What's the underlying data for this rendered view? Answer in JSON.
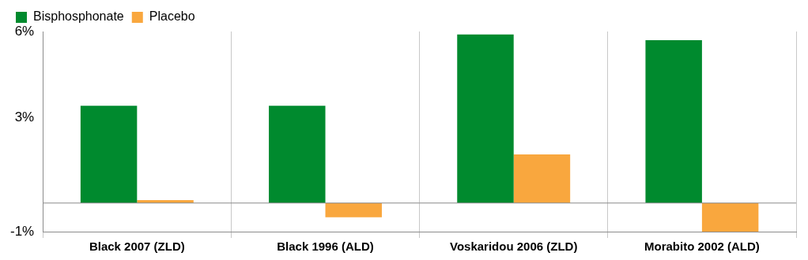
{
  "chart_data": {
    "type": "bar",
    "categories": [
      "Black 2007 (ZLD)",
      "Black 1996 (ALD)",
      "Voskaridou 2006 (ZLD)",
      "Morabito 2002 (ALD)"
    ],
    "series": [
      {
        "name": "Bisphosphonate",
        "color": "#008a2e",
        "values": [
          3.4,
          3.4,
          5.9,
          5.7
        ]
      },
      {
        "name": "Placebo",
        "color": "#f9a73e",
        "values": [
          0.1,
          -0.5,
          1.7,
          -1.0
        ]
      }
    ],
    "ylim": [
      -1,
      6
    ],
    "yticks": [
      {
        "value": -1,
        "label": "-1%"
      },
      {
        "value": 3,
        "label": "3%"
      },
      {
        "value": 6,
        "label": "6%"
      }
    ],
    "grid": false,
    "legend": "upper left"
  }
}
